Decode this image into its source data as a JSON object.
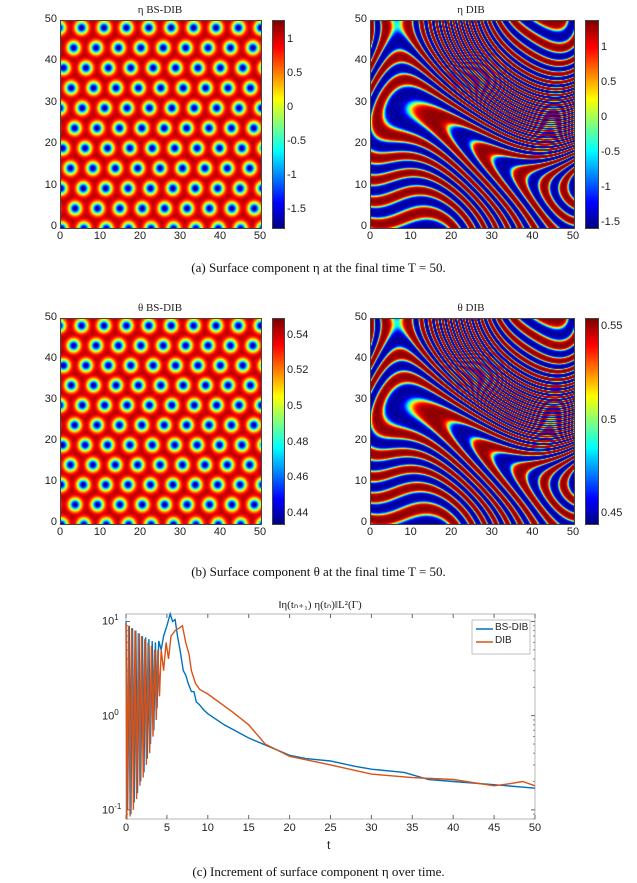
{
  "figure_a": {
    "left": {
      "title": "η BS-DIB",
      "pattern": "spots",
      "clim": [
        -1.75,
        1.3
      ],
      "cbar_ticks": [
        "1",
        "0.5",
        "0",
        "-0.5",
        "-1",
        "-1.5"
      ],
      "cbar_values": [
        1,
        0.5,
        0,
        -0.5,
        -1,
        -1.5
      ]
    },
    "right": {
      "title": "η DIB",
      "pattern": "stripes",
      "clim": [
        -1.55,
        1.4
      ],
      "cbar_ticks": [
        "1",
        "0.5",
        "0",
        "-0.5",
        "-1",
        "-1.5"
      ],
      "cbar_values": [
        1,
        0.5,
        0,
        -0.5,
        -1,
        -1.5
      ]
    },
    "caption": "(a)  Surface component η at the final time T = 50."
  },
  "figure_b": {
    "left": {
      "title": "θ BS-DIB",
      "pattern": "spots",
      "clim": [
        0.435,
        0.55
      ],
      "cbar_ticks": [
        "0.54",
        "0.52",
        "0.5",
        "0.48",
        "0.46",
        "0.44"
      ],
      "cbar_values": [
        0.54,
        0.52,
        0.5,
        0.48,
        0.46,
        0.44
      ]
    },
    "right": {
      "title": "θ DIB",
      "pattern": "stripes",
      "clim": [
        0.445,
        0.555
      ],
      "cbar_ticks": [
        "0.55",
        "0.5",
        "0.45"
      ],
      "cbar_values": [
        0.55,
        0.5,
        0.45
      ]
    },
    "caption": "(b)  Surface component θ at the final time T = 50."
  },
  "axis_ticks": [
    "0",
    "10",
    "20",
    "30",
    "40",
    "50"
  ],
  "colors": {
    "bs_dib": "#0072BD",
    "dib": "#D95319"
  },
  "chart_data": {
    "type": "line",
    "title": "‖η(tₙ₊₁)    η(tₙ)‖L²(Γ)",
    "xlabel": "t",
    "ylabel": "",
    "xlim": [
      0,
      50
    ],
    "ylim": [
      0.08,
      12
    ],
    "yscale": "log",
    "xticks": [
      "0",
      "5",
      "10",
      "15",
      "20",
      "25",
      "30",
      "35",
      "40",
      "45",
      "50"
    ],
    "yticks": [
      {
        "label": "10",
        "exp": "-1",
        "value": 0.1
      },
      {
        "label": "10",
        "exp": "0",
        "value": 1
      },
      {
        "label": "10",
        "exp": "1",
        "value": 10
      }
    ],
    "legend": {
      "placement": "top-right",
      "entries": [
        "BS-DIB",
        "DIB"
      ]
    },
    "series": [
      {
        "name": "BS-DIB",
        "x": [
          0,
          0.2,
          0.4,
          0.6,
          0.8,
          1.0,
          1.2,
          1.4,
          1.6,
          1.8,
          2.0,
          2.2,
          2.4,
          2.6,
          2.8,
          3.0,
          3.2,
          3.4,
          3.6,
          3.8,
          4.0,
          4.3,
          4.6,
          5.0,
          5.4,
          5.7,
          6.0,
          6.3,
          6.6,
          7.0,
          7.3,
          7.6,
          8.0,
          8.3,
          8.6,
          9.0,
          9.5,
          10,
          12,
          15,
          18,
          20,
          22,
          25,
          28,
          30,
          34,
          37,
          40,
          45,
          50
        ],
        "y": [
          10,
          0.1,
          9,
          0.09,
          8.5,
          0.12,
          8,
          0.15,
          7.5,
          0.2,
          7,
          0.25,
          6.8,
          0.35,
          6.5,
          0.5,
          6.2,
          0.7,
          6,
          1.2,
          6.2,
          5,
          7,
          9,
          12,
          10,
          10.5,
          7,
          5,
          3,
          2.7,
          2.2,
          1.8,
          1.8,
          1.4,
          1.3,
          1.15,
          1.05,
          0.8,
          0.58,
          0.45,
          0.38,
          0.35,
          0.33,
          0.29,
          0.27,
          0.25,
          0.21,
          0.2,
          0.185,
          0.17
        ]
      },
      {
        "name": "DIB",
        "x": [
          0,
          0.1,
          0.3,
          0.5,
          0.7,
          0.9,
          1.1,
          1.3,
          1.5,
          1.7,
          1.9,
          2.1,
          2.3,
          2.5,
          2.7,
          2.9,
          3.1,
          3.3,
          3.5,
          3.7,
          3.9,
          4.1,
          4.3,
          4.6,
          4.9,
          5.2,
          5.5,
          6.0,
          6.5,
          6.9,
          7.3,
          7.7,
          8.0,
          8.5,
          9,
          10,
          13,
          15,
          17,
          20,
          25,
          30,
          35,
          40,
          45,
          47,
          48.5,
          50
        ],
        "y": [
          9.5,
          0.08,
          9,
          0.085,
          8.5,
          0.1,
          8,
          0.13,
          7.5,
          0.18,
          7,
          0.22,
          6.5,
          0.3,
          6,
          0.4,
          5.5,
          0.6,
          5,
          0.9,
          5,
          1.6,
          5,
          3,
          6,
          4,
          7,
          8,
          8.5,
          9,
          6,
          4.5,
          3,
          2.2,
          1.9,
          1.7,
          1.1,
          0.8,
          0.5,
          0.37,
          0.3,
          0.24,
          0.22,
          0.21,
          0.18,
          0.19,
          0.2,
          0.18
        ]
      }
    ]
  },
  "caption_c": "(c)  Increment of surface component η over time."
}
